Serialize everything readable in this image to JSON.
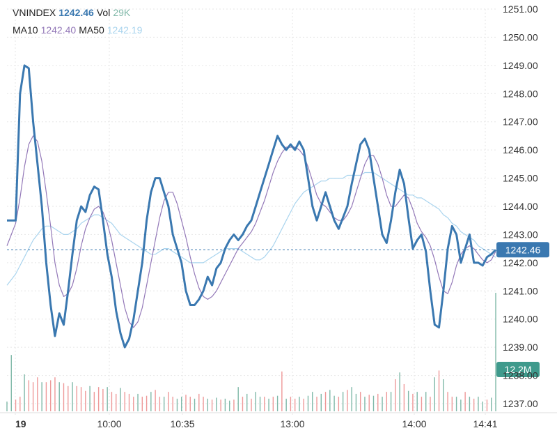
{
  "legend": {
    "symbol": "VNINDEX",
    "last_value": "1242.46",
    "vol_label": "Vol",
    "vol_value": "29K",
    "ma10_label": "MA10",
    "ma10_value": "1242.40",
    "ma50_label": "MA50",
    "ma50_value": "1242.19"
  },
  "colors": {
    "price": "#3a78b0",
    "ma10": "#9378b8",
    "ma50": "#a9d4ee",
    "vol_up": "#7fb8a8",
    "vol_down": "#ee9999",
    "grid": "#e6e6e6",
    "last_tag_bg": "#3a78b0",
    "vol_tag_bg": "#3f9a8c"
  },
  "chart_data": {
    "type": "line",
    "title": "",
    "ylim": [
      1237.0,
      1251.0
    ],
    "y_ticks": [
      "1237.00",
      "1238.00",
      "1239.00",
      "1240.00",
      "1241.00",
      "1242.00",
      "1243.00",
      "1244.00",
      "1245.00",
      "1246.00",
      "1247.00",
      "1248.00",
      "1249.00",
      "1250.00",
      "1251.00"
    ],
    "x_ticks": [
      "19",
      "10:00",
      "10:35",
      "13:00",
      "14:00",
      "14:41"
    ],
    "grid": true,
    "last_price_tag": "1242.46",
    "last_price": 1242.46,
    "volume_tag": "12.2M",
    "series": [
      {
        "key": "price",
        "values": [
          1243.5,
          1243.5,
          1243.5,
          1248.0,
          1249.0,
          1248.9,
          1247.0,
          1245.5,
          1244.0,
          1242.0,
          1240.5,
          1239.4,
          1240.2,
          1239.8,
          1241.0,
          1242.3,
          1243.5,
          1244.0,
          1243.8,
          1244.4,
          1244.7,
          1244.6,
          1243.5,
          1242.3,
          1241.5,
          1240.3,
          1239.5,
          1239.0,
          1239.3,
          1240.0,
          1241.0,
          1242.0,
          1243.5,
          1244.5,
          1245.0,
          1245.0,
          1244.5,
          1244.0,
          1243.0,
          1242.5,
          1242.0,
          1241.0,
          1240.5,
          1240.5,
          1240.7,
          1241.0,
          1241.5,
          1241.2,
          1241.8,
          1242.0,
          1242.5,
          1242.8,
          1243.0,
          1242.8,
          1243.0,
          1243.3,
          1243.5,
          1244.0,
          1244.5,
          1245.0,
          1245.5,
          1246.0,
          1246.5,
          1246.2,
          1246.0,
          1246.2,
          1246.0,
          1246.3,
          1246.0,
          1245.0,
          1244.0,
          1243.5,
          1244.0,
          1244.5,
          1244.0,
          1243.5,
          1243.2,
          1243.6,
          1244.0,
          1244.8,
          1245.5,
          1246.2,
          1246.4,
          1246.0,
          1245.0,
          1244.0,
          1243.0,
          1242.7,
          1243.5,
          1244.5,
          1245.3,
          1244.8,
          1243.6,
          1242.5,
          1242.8,
          1243.0,
          1242.4,
          1241.0,
          1239.8,
          1239.7,
          1241.0,
          1242.5,
          1243.3,
          1243.0,
          1242.0,
          1242.5,
          1243.0,
          1242.0,
          1242.0,
          1241.9,
          1242.2,
          1242.3,
          1242.46
        ]
      },
      {
        "key": "ma10",
        "values": [
          1242.6,
          1243.0,
          1243.4,
          1244.3,
          1245.4,
          1246.2,
          1246.5,
          1246.3,
          1245.6,
          1244.5,
          1243.3,
          1242.0,
          1241.2,
          1240.8,
          1240.9,
          1241.2,
          1241.8,
          1242.6,
          1243.2,
          1243.6,
          1243.9,
          1244.0,
          1243.8,
          1243.4,
          1242.8,
          1242.0,
          1241.2,
          1240.4,
          1239.9,
          1239.7,
          1239.9,
          1240.4,
          1241.2,
          1242.0,
          1242.8,
          1243.6,
          1244.2,
          1244.5,
          1244.5,
          1244.1,
          1243.5,
          1242.9,
          1242.2,
          1241.6,
          1241.1,
          1240.8,
          1240.7,
          1240.8,
          1241.0,
          1241.3,
          1241.6,
          1241.9,
          1242.2,
          1242.5,
          1242.7,
          1242.9,
          1243.1,
          1243.4,
          1243.8,
          1244.2,
          1244.7,
          1245.2,
          1245.6,
          1245.9,
          1246.1,
          1246.1,
          1246.1,
          1246.0,
          1245.8,
          1245.4,
          1244.9,
          1244.4,
          1244.1,
          1244.0,
          1243.8,
          1243.6,
          1243.5,
          1243.5,
          1243.7,
          1244.0,
          1244.5,
          1245.0,
          1245.5,
          1245.8,
          1245.8,
          1245.5,
          1245.0,
          1244.4,
          1244.0,
          1244.0,
          1244.2,
          1244.4,
          1244.3,
          1243.9,
          1243.4,
          1243.1,
          1242.9,
          1242.6,
          1242.1,
          1241.5,
          1241.0,
          1240.9,
          1241.3,
          1241.9,
          1242.3,
          1242.5,
          1242.6,
          1242.5,
          1242.3,
          1242.1,
          1242.0,
          1242.1,
          1242.4
        ]
      },
      {
        "key": "ma50",
        "values": [
          1241.2,
          1241.4,
          1241.6,
          1241.9,
          1242.2,
          1242.5,
          1242.8,
          1243.0,
          1243.2,
          1243.3,
          1243.3,
          1243.2,
          1243.1,
          1243.0,
          1243.0,
          1243.1,
          1243.2,
          1243.4,
          1243.5,
          1243.6,
          1243.7,
          1243.7,
          1243.6,
          1243.5,
          1243.4,
          1243.2,
          1243.0,
          1242.9,
          1242.8,
          1242.7,
          1242.6,
          1242.5,
          1242.4,
          1242.3,
          1242.3,
          1242.4,
          1242.5,
          1242.5,
          1242.4,
          1242.3,
          1242.2,
          1242.1,
          1242.0,
          1242.0,
          1242.0,
          1242.0,
          1242.1,
          1242.2,
          1242.3,
          1242.4,
          1242.5,
          1242.5,
          1242.5,
          1242.5,
          1242.4,
          1242.3,
          1242.2,
          1242.1,
          1242.1,
          1242.2,
          1242.4,
          1242.6,
          1242.9,
          1243.2,
          1243.5,
          1243.8,
          1244.1,
          1244.3,
          1244.5,
          1244.6,
          1244.7,
          1244.8,
          1244.9,
          1244.9,
          1245.0,
          1245.0,
          1245.0,
          1245.0,
          1245.1,
          1245.1,
          1245.1,
          1245.1,
          1245.2,
          1245.2,
          1245.2,
          1245.1,
          1245.0,
          1244.9,
          1244.8,
          1244.7,
          1244.6,
          1244.5,
          1244.4,
          1244.4,
          1244.3,
          1244.3,
          1244.2,
          1244.1,
          1244.0,
          1243.9,
          1243.7,
          1243.6,
          1243.4,
          1243.3,
          1243.1,
          1243.0,
          1242.9,
          1242.8,
          1242.6,
          1242.5,
          1242.4,
          1242.3,
          1242.19
        ]
      }
    ],
    "volume": {
      "values": [
        1.0,
        5.8,
        1.2,
        1.5,
        3.8,
        3.2,
        3.0,
        3.5,
        3.0,
        3.0,
        3.2,
        3.5,
        3.0,
        2.9,
        2.6,
        3.0,
        2.6,
        2.5,
        2.1,
        2.6,
        2.0,
        2.5,
        2.3,
        2.5,
        2.0,
        1.8,
        2.4,
        2.0,
        1.8,
        1.5,
        1.8,
        1.5,
        1.6,
        2.0,
        2.2,
        1.5,
        1.5,
        2.0,
        1.5,
        1.3,
        1.5,
        1.7,
        1.5,
        1.3,
        1.8,
        1.5,
        1.3,
        1.2,
        1.4,
        1.2,
        1.3,
        1.1,
        1.2,
        2.5,
        1.5,
        1.8,
        1.3,
        2.0,
        1.5,
        1.5,
        1.3,
        1.5,
        1.6,
        4.1,
        1.3,
        1.5,
        1.3,
        1.5,
        1.3,
        1.6,
        2.0,
        1.5,
        1.8,
        2.0,
        2.2,
        1.6,
        1.5,
        2.0,
        2.2,
        2.5,
        1.8,
        2.0,
        1.5,
        1.7,
        1.6,
        1.8,
        1.5,
        2.0,
        2.0,
        3.3,
        4.0,
        2.8,
        2.1,
        1.8,
        2.0,
        1.5,
        2.0,
        1.5,
        3.5,
        4.2,
        3.3,
        2.0,
        1.5,
        1.5,
        1.2,
        2.0,
        1.5,
        1.3,
        1.5,
        1.0,
        1.2,
        1.4,
        12.2
      ],
      "up": [
        1,
        1,
        0,
        0,
        1,
        0,
        0,
        0,
        1,
        0,
        0,
        0,
        1,
        0,
        0,
        1,
        0,
        0,
        0,
        1,
        0,
        0,
        0,
        1,
        0,
        0,
        1,
        0,
        0,
        0,
        1,
        0,
        0,
        1,
        0,
        0,
        1,
        0,
        0,
        1,
        1,
        0,
        0,
        1,
        0,
        0,
        1,
        0,
        1,
        0,
        1,
        1,
        0,
        1,
        0,
        1,
        0,
        1,
        1,
        0,
        1,
        0,
        1,
        0,
        1,
        0,
        0,
        1,
        0,
        1,
        1,
        0,
        1,
        0,
        1,
        1,
        0,
        1,
        0,
        1,
        1,
        0,
        1,
        0,
        1,
        0,
        1,
        0,
        1,
        0,
        1,
        0,
        1,
        0,
        1,
        0,
        1,
        0,
        1,
        0,
        1,
        0,
        0,
        1,
        1,
        0,
        1,
        0,
        1,
        1,
        0,
        1,
        1
      ]
    }
  }
}
